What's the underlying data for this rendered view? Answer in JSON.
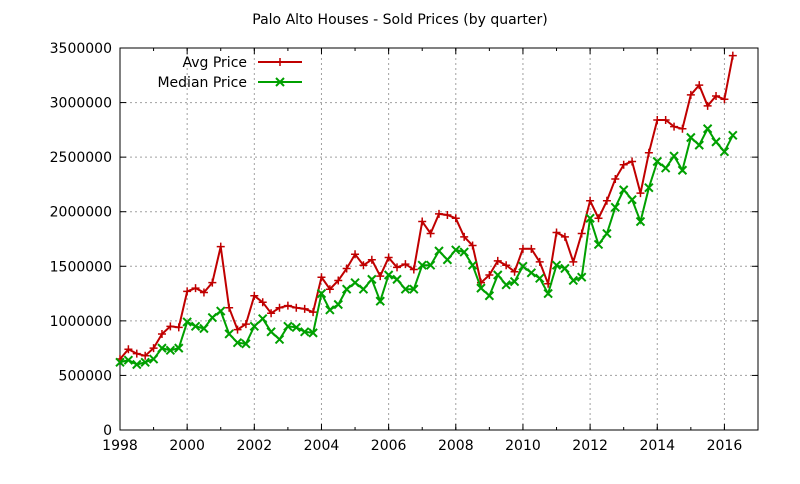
{
  "chart_data": {
    "type": "line",
    "title": "Palo Alto Houses - Sold Prices (by quarter)",
    "xlabel": "",
    "ylabel": "",
    "xlim": [
      1998,
      2017
    ],
    "ylim": [
      0,
      3500000
    ],
    "x_ticks": [
      "1998",
      "2000",
      "2002",
      "2004",
      "2006",
      "2008",
      "2010",
      "2012",
      "2014",
      "2016"
    ],
    "y_ticks": [
      "0",
      "500000",
      "1000000",
      "1500000",
      "2000000",
      "2500000",
      "3000000",
      "3500000"
    ],
    "grid": true,
    "legend_position": "top-left",
    "x": [
      1998.0,
      1998.25,
      1998.5,
      1998.75,
      1999.0,
      1999.25,
      1999.5,
      1999.75,
      2000.0,
      2000.25,
      2000.5,
      2000.75,
      2001.0,
      2001.25,
      2001.5,
      2001.75,
      2002.0,
      2002.25,
      2002.5,
      2002.75,
      2003.0,
      2003.25,
      2003.5,
      2003.75,
      2004.0,
      2004.25,
      2004.5,
      2004.75,
      2005.0,
      2005.25,
      2005.5,
      2005.75,
      2006.0,
      2006.25,
      2006.5,
      2006.75,
      2007.0,
      2007.25,
      2007.5,
      2007.75,
      2008.0,
      2008.25,
      2008.5,
      2008.75,
      2009.0,
      2009.25,
      2009.5,
      2009.75,
      2010.0,
      2010.25,
      2010.5,
      2010.75,
      2011.0,
      2011.25,
      2011.5,
      2011.75,
      2012.0,
      2012.25,
      2012.5,
      2012.75,
      2013.0,
      2013.25,
      2013.5,
      2013.75,
      2014.0,
      2014.25,
      2014.5,
      2014.75,
      2015.0,
      2015.25,
      2015.5,
      2015.75,
      2016.0,
      2016.25
    ],
    "series": [
      {
        "name": "Avg Price",
        "color": "#c00000",
        "marker": "plus",
        "values": [
          650000,
          740000,
          700000,
          680000,
          750000,
          880000,
          950000,
          940000,
          1270000,
          1300000,
          1260000,
          1350000,
          1680000,
          1120000,
          920000,
          970000,
          1230000,
          1170000,
          1070000,
          1120000,
          1140000,
          1120000,
          1110000,
          1080000,
          1400000,
          1290000,
          1370000,
          1480000,
          1610000,
          1510000,
          1560000,
          1410000,
          1580000,
          1490000,
          1520000,
          1470000,
          1910000,
          1800000,
          1980000,
          1970000,
          1940000,
          1770000,
          1690000,
          1350000,
          1420000,
          1550000,
          1510000,
          1450000,
          1660000,
          1660000,
          1540000,
          1340000,
          1810000,
          1770000,
          1540000,
          1800000,
          2100000,
          1940000,
          2100000,
          2300000,
          2430000,
          2460000,
          2170000,
          2540000,
          2840000,
          2840000,
          2780000,
          2760000,
          3070000,
          3160000,
          2970000,
          3060000,
          3030000,
          3430000
        ]
      },
      {
        "name": "Median Price",
        "color": "#00a000",
        "marker": "cross",
        "values": [
          620000,
          640000,
          600000,
          620000,
          650000,
          750000,
          730000,
          750000,
          990000,
          950000,
          930000,
          1030000,
          1090000,
          880000,
          800000,
          790000,
          950000,
          1020000,
          900000,
          830000,
          950000,
          940000,
          900000,
          890000,
          1250000,
          1100000,
          1150000,
          1290000,
          1350000,
          1290000,
          1380000,
          1180000,
          1420000,
          1380000,
          1290000,
          1290000,
          1510000,
          1510000,
          1640000,
          1560000,
          1650000,
          1630000,
          1510000,
          1300000,
          1230000,
          1420000,
          1330000,
          1360000,
          1500000,
          1440000,
          1390000,
          1250000,
          1510000,
          1480000,
          1370000,
          1400000,
          1940000,
          1700000,
          1800000,
          2040000,
          2200000,
          2110000,
          1910000,
          2220000,
          2460000,
          2400000,
          2510000,
          2380000,
          2680000,
          2610000,
          2760000,
          2640000,
          2550000,
          2700000
        ]
      }
    ]
  }
}
